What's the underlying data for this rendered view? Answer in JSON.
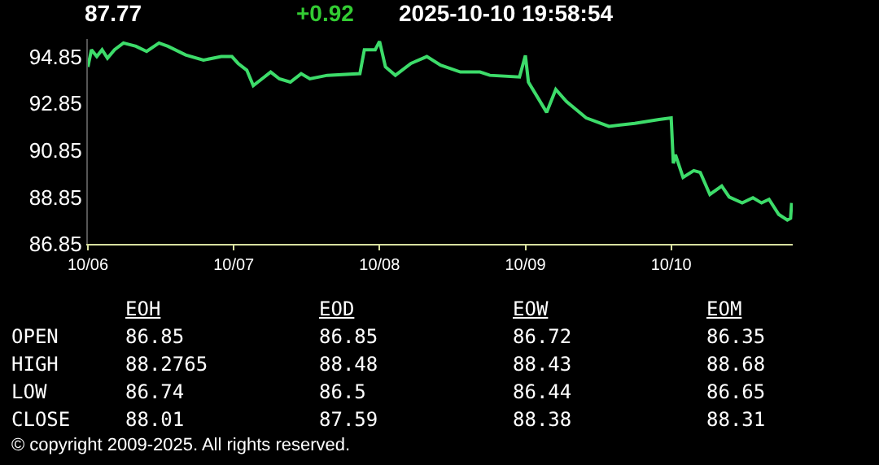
{
  "chart_data": {
    "type": "line",
    "color": "#3ddc6a",
    "x": [
      "2025-10-06T00:00",
      "2025-10-06T00:35",
      "2025-10-06T01:28",
      "2025-10-06T02:20",
      "2025-10-06T03:13",
      "2025-10-06T04:23",
      "2025-10-06T05:51",
      "2025-10-06T07:54",
      "2025-10-06T09:40",
      "2025-10-06T11:42",
      "2025-10-06T13:10",
      "2025-10-06T16:06",
      "2025-10-06T19:01",
      "2025-10-06T21:57",
      "2025-10-06T23:42",
      "2025-10-07T00:43",
      "2025-10-07T02:09",
      "2025-10-07T03:13",
      "2025-10-07T04:39",
      "2025-10-07T06:05",
      "2025-10-07T07:31",
      "2025-10-07T09:19",
      "2025-10-07T11:06",
      "2025-10-07T12:32",
      "2025-10-07T15:24",
      "2025-10-07T20:46",
      "2025-10-07T21:30",
      "2025-10-07T23:17",
      "2025-10-08T00:00",
      "2025-10-08T00:58",
      "2025-10-08T02:36",
      "2025-10-08T05:11",
      "2025-10-08T07:47",
      "2025-10-08T10:03",
      "2025-10-08T13:18",
      "2025-10-08T16:32",
      "2025-10-08T18:10",
      "2025-10-08T23:02",
      "2025-10-09T00:00",
      "2025-10-09T00:30",
      "2025-10-09T03:30",
      "2025-10-09T05:00",
      "2025-10-09T06:45",
      "2025-10-09T10:00",
      "2025-10-09T13:45",
      "2025-10-09T18:00",
      "2025-10-09T22:00",
      "2025-10-10T00:00",
      "2025-10-10T00:21",
      "2025-10-10T00:42",
      "2025-10-10T01:57",
      "2025-10-10T03:43",
      "2025-10-10T04:47",
      "2025-10-10T06:22",
      "2025-10-10T08:19",
      "2025-10-10T09:33",
      "2025-10-10T11:41",
      "2025-10-10T13:27",
      "2025-10-10T14:52",
      "2025-10-10T16:06",
      "2025-10-10T17:42",
      "2025-10-10T19:07",
      "2025-10-10T19:39",
      "2025-10-10T19:49"
    ],
    "values": [
      94.41,
      95.14,
      94.85,
      95.14,
      94.78,
      95.14,
      95.43,
      95.29,
      95.07,
      95.43,
      95.29,
      94.92,
      94.7,
      94.85,
      94.85,
      94.56,
      94.27,
      93.61,
      93.9,
      94.19,
      93.9,
      93.76,
      94.12,
      93.9,
      94.05,
      94.12,
      95.14,
      95.14,
      95.5,
      94.41,
      94.05,
      94.56,
      94.85,
      94.48,
      94.19,
      94.19,
      94.05,
      93.98,
      94.9,
      93.76,
      92.47,
      93.45,
      92.93,
      92.23,
      91.87,
      92.0,
      92.16,
      92.23,
      90.29,
      90.66,
      89.69,
      89.98,
      89.9,
      88.96,
      89.32,
      88.85,
      88.6,
      88.82,
      88.6,
      88.75,
      88.11,
      87.87,
      87.94,
      88.6
    ],
    "xlim": [
      "2025-10-06",
      "2025-10-10T20:00"
    ],
    "xticks": [
      {
        "value": "2025-10-06",
        "label": "10/06"
      },
      {
        "value": "2025-10-07",
        "label": "10/07"
      },
      {
        "value": "2025-10-08",
        "label": "10/08"
      },
      {
        "value": "2025-10-09",
        "label": "10/09"
      },
      {
        "value": "2025-10-10",
        "label": "10/10"
      }
    ],
    "ylim": [
      86.85,
      95.6
    ],
    "yticks": [
      86.85,
      88.85,
      90.85,
      92.85,
      94.85
    ],
    "grid": false,
    "marker": "none",
    "line_style": "solid",
    "annotations": [
      "87.77",
      "+0.92",
      "2025-10-10 19:58:54",
      "EOH",
      "EOD",
      "EOW",
      "EOM",
      "OPEN",
      "86.85",
      "86.85",
      "86.72",
      "86.35",
      "HIGH",
      "88.2765",
      "88.48",
      "88.43",
      "88.68",
      "LOW",
      "86.74",
      "86.5",
      "86.44",
      "86.65",
      "CLOSE",
      "88.01",
      "87.59",
      "88.38",
      "88.31",
      "© copyright 2009-2025. All rights reserved."
    ]
  }
}
